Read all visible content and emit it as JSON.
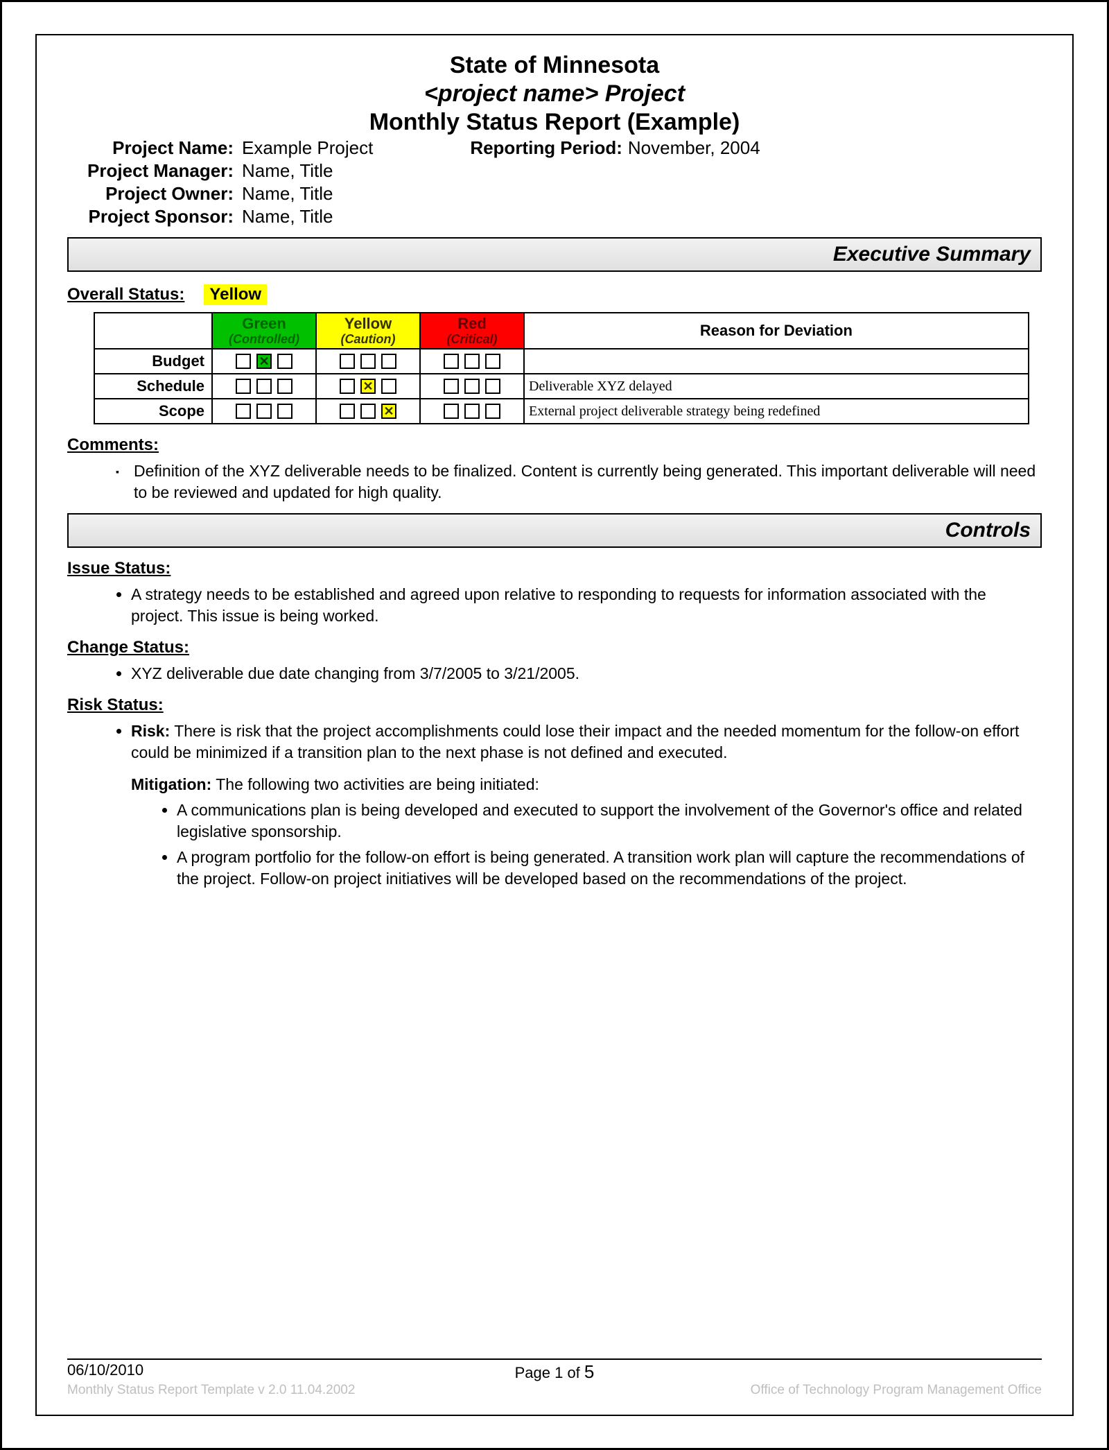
{
  "colors": {
    "green": "#00c000",
    "yellow": "#ffff00",
    "red": "#ff0000",
    "page_border": "#000000",
    "header_bar_bg_top": "#f2f2f2",
    "header_bar_bg_bottom": "#e0e0e0",
    "footer_grey": "#bfbfbf"
  },
  "header": {
    "line1": "State of Minnesota",
    "line2": "<project name> Project",
    "line3": "Monthly Status Report (Example)"
  },
  "meta": {
    "project_name_label": "Project Name:",
    "project_name_value": "Example Project",
    "reporting_period_label": "Reporting Period:",
    "reporting_period_value": "November, 2004",
    "project_manager_label": "Project Manager:",
    "project_manager_value": "Name, Title",
    "project_owner_label": "Project Owner:",
    "project_owner_value": "Name, Title",
    "project_sponsor_label": "Project Sponsor:",
    "project_sponsor_value": "Name, Title"
  },
  "sections": {
    "executive_summary": "Executive Summary",
    "controls": "Controls"
  },
  "overall_status": {
    "label": "Overall Status:",
    "value": "Yellow"
  },
  "status_table": {
    "columns": {
      "green": {
        "main": "Green",
        "sub": "(Controlled)"
      },
      "yellow": {
        "main": "Yellow",
        "sub": "(Caution)"
      },
      "red": {
        "main": "Red",
        "sub": "(Critical)"
      },
      "reason": "Reason for Deviation"
    },
    "rows": [
      {
        "label": "Budget",
        "green": [
          false,
          true,
          false
        ],
        "yellow": [
          false,
          false,
          false
        ],
        "red": [
          false,
          false,
          false
        ],
        "reason": ""
      },
      {
        "label": "Schedule",
        "green": [
          false,
          false,
          false
        ],
        "yellow": [
          false,
          true,
          false
        ],
        "red": [
          false,
          false,
          false
        ],
        "reason": "Deliverable XYZ delayed"
      },
      {
        "label": "Scope",
        "green": [
          false,
          false,
          false
        ],
        "yellow": [
          false,
          false,
          true
        ],
        "red": [
          false,
          false,
          false
        ],
        "reason": "External project deliverable strategy being redefined"
      }
    ]
  },
  "comments": {
    "heading": "Comments:",
    "items": [
      "Definition of the XYZ deliverable needs to be finalized.  Content is currently being generated.  This important deliverable will need to be reviewed and updated for high quality."
    ]
  },
  "issue_status": {
    "heading": "Issue Status:",
    "items": [
      "A strategy needs to be established and agreed upon relative to responding to requests for information associated with the project.  This issue is being worked."
    ]
  },
  "change_status": {
    "heading": "Change Status:",
    "items": [
      "XYZ deliverable due date changing from 3/7/2005 to 3/21/2005."
    ]
  },
  "risk_status": {
    "heading": "Risk Status:",
    "risk_label": "Risk:",
    "risk_text": "There is risk that the project accomplishments could lose their impact and the needed momentum for the follow-on effort could be minimized if a transition plan to the next phase is not defined and executed.",
    "mitigation_label": "Mitigation:",
    "mitigation_intro": "The following two activities are being initiated:",
    "mitigation_items": [
      "A communications plan is being developed and executed to support the involvement of the Governor's office and related legislative sponsorship.",
      "A program portfolio for the follow-on effort is being generated. A transition work plan will capture the recommendations of the project. Follow-on project initiatives will be developed based on the recommendations of the project."
    ]
  },
  "footer": {
    "date": "06/10/2010",
    "page_prefix": "Page ",
    "page_current": "1",
    "page_of": " of ",
    "page_total": "5",
    "template_line": "Monthly Status Report Template  v 2.0  11.04.2002",
    "office_line": "Office of Technology Program Management Office"
  }
}
